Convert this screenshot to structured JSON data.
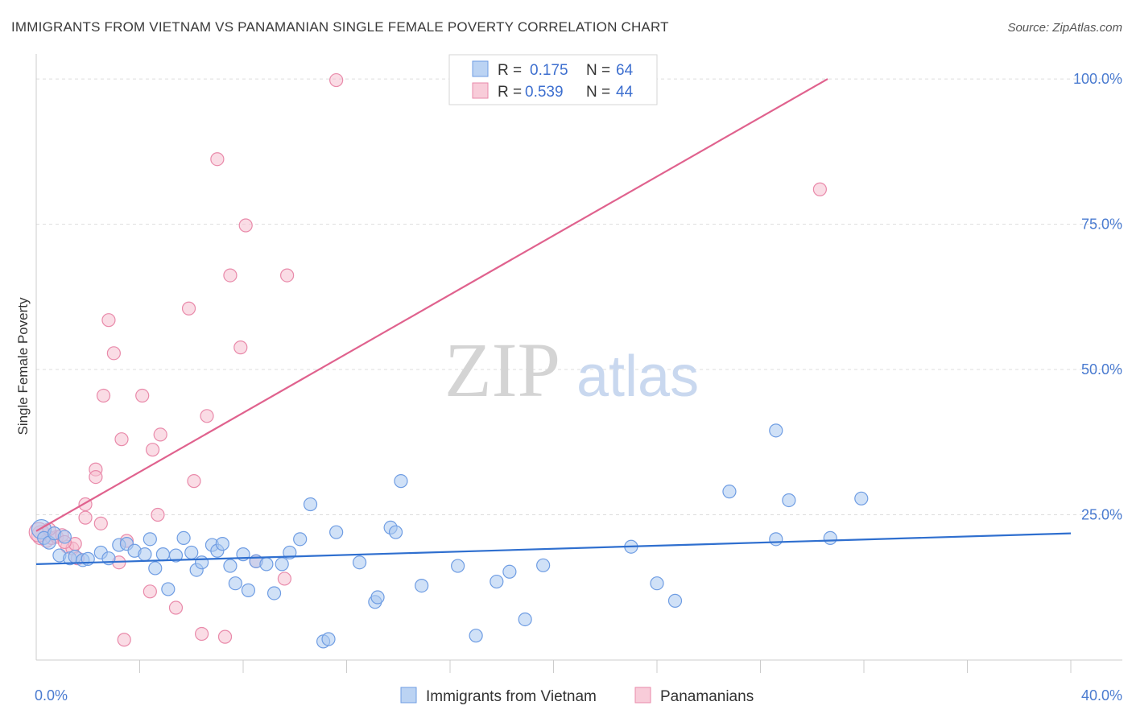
{
  "chart_data": {
    "type": "scatter",
    "title": "IMMIGRANTS FROM VIETNAM VS PANAMANIAN SINGLE FEMALE POVERTY CORRELATION CHART",
    "source": "Source: ZipAtlas.com",
    "ylabel": "Single Female Poverty",
    "xlim": [
      0,
      40
    ],
    "ylim": [
      0,
      105
    ],
    "x_tick_labels": [
      {
        "value": 0,
        "label": "0.0%"
      },
      {
        "value": 40,
        "label": "40.0%"
      }
    ],
    "y_tick_labels": [
      {
        "value": 25,
        "label": "25.0%"
      },
      {
        "value": 50,
        "label": "50.0%"
      },
      {
        "value": 75,
        "label": "75.0%"
      },
      {
        "value": 100,
        "label": "100.0%"
      }
    ],
    "watermark": {
      "zip": "ZIP",
      "atlas": "atlas"
    },
    "legend": {
      "r_label": "R =",
      "n_label": "N =",
      "entries": [
        {
          "r": "0.175",
          "n": "64"
        },
        {
          "r": "0.539",
          "n": "44"
        }
      ]
    },
    "series": [
      {
        "name": "Immigrants from Vietnam",
        "color": "#6f9de3",
        "fill": "#aac8f0",
        "trend": {
          "x0": 0,
          "y0": 16.5,
          "x1": 40,
          "y1": 21.8
        },
        "points": [
          [
            0.2,
            22.5
          ],
          [
            0.3,
            21.0
          ],
          [
            0.5,
            20.2
          ],
          [
            0.7,
            21.8
          ],
          [
            0.9,
            18.0
          ],
          [
            1.1,
            21.2
          ],
          [
            1.3,
            17.5
          ],
          [
            1.5,
            17.8
          ],
          [
            1.8,
            17.2
          ],
          [
            2.0,
            17.4
          ],
          [
            2.5,
            18.5
          ],
          [
            2.8,
            17.5
          ],
          [
            3.2,
            19.8
          ],
          [
            3.5,
            20.0
          ],
          [
            3.8,
            18.8
          ],
          [
            4.2,
            18.2
          ],
          [
            4.4,
            20.8
          ],
          [
            4.6,
            15.8
          ],
          [
            4.9,
            18.2
          ],
          [
            5.1,
            12.2
          ],
          [
            5.4,
            18.0
          ],
          [
            5.7,
            21.0
          ],
          [
            6.0,
            18.5
          ],
          [
            6.2,
            15.5
          ],
          [
            6.4,
            16.8
          ],
          [
            6.8,
            19.8
          ],
          [
            7.0,
            18.8
          ],
          [
            7.2,
            20.0
          ],
          [
            7.5,
            16.2
          ],
          [
            7.7,
            13.2
          ],
          [
            8.0,
            18.2
          ],
          [
            8.2,
            12.0
          ],
          [
            8.5,
            17.0
          ],
          [
            8.9,
            16.5
          ],
          [
            9.2,
            11.5
          ],
          [
            9.5,
            16.5
          ],
          [
            9.8,
            18.5
          ],
          [
            10.2,
            20.8
          ],
          [
            10.6,
            26.8
          ],
          [
            11.1,
            3.2
          ],
          [
            11.3,
            3.6
          ],
          [
            11.6,
            22.0
          ],
          [
            12.5,
            16.8
          ],
          [
            13.1,
            10.0
          ],
          [
            13.2,
            10.8
          ],
          [
            13.7,
            22.8
          ],
          [
            13.9,
            22.0
          ],
          [
            14.1,
            30.8
          ],
          [
            14.9,
            12.8
          ],
          [
            16.3,
            16.2
          ],
          [
            17.0,
            4.2
          ],
          [
            17.8,
            13.5
          ],
          [
            18.3,
            15.2
          ],
          [
            18.9,
            7.0
          ],
          [
            19.6,
            16.3
          ],
          [
            23.0,
            19.5
          ],
          [
            24.0,
            13.2
          ],
          [
            24.7,
            10.2
          ],
          [
            26.8,
            29.0
          ],
          [
            28.6,
            39.5
          ],
          [
            28.6,
            20.8
          ],
          [
            29.1,
            27.5
          ],
          [
            30.7,
            21.0
          ],
          [
            31.9,
            27.8
          ]
        ]
      },
      {
        "name": "Panamanians",
        "color": "#e98aaa",
        "fill": "#f6bfd0",
        "trend": {
          "x0": 0,
          "y0": 22.2,
          "x1": 30.6,
          "y1": 100
        },
        "points": [
          [
            0.2,
            21.5
          ],
          [
            0.4,
            20.5
          ],
          [
            0.6,
            21.0
          ],
          [
            0.8,
            21.2
          ],
          [
            1.0,
            21.5
          ],
          [
            1.2,
            19.5
          ],
          [
            1.4,
            19.2
          ],
          [
            1.5,
            20.0
          ],
          [
            1.6,
            17.5
          ],
          [
            1.9,
            26.8
          ],
          [
            1.9,
            24.5
          ],
          [
            2.3,
            32.8
          ],
          [
            2.3,
            31.5
          ],
          [
            2.5,
            23.5
          ],
          [
            2.6,
            45.5
          ],
          [
            2.8,
            58.5
          ],
          [
            3.0,
            52.8
          ],
          [
            3.2,
            16.8
          ],
          [
            3.3,
            38.0
          ],
          [
            3.4,
            3.5
          ],
          [
            3.5,
            20.5
          ],
          [
            4.1,
            45.5
          ],
          [
            4.4,
            11.8
          ],
          [
            4.5,
            36.2
          ],
          [
            4.7,
            25.0
          ],
          [
            4.8,
            38.8
          ],
          [
            5.4,
            9.0
          ],
          [
            5.9,
            60.5
          ],
          [
            6.1,
            30.8
          ],
          [
            6.4,
            4.5
          ],
          [
            6.6,
            42.0
          ],
          [
            7.0,
            86.2
          ],
          [
            7.3,
            4.0
          ],
          [
            7.5,
            66.2
          ],
          [
            7.9,
            53.8
          ],
          [
            8.1,
            74.8
          ],
          [
            8.5,
            17.0
          ],
          [
            9.6,
            14.0
          ],
          [
            9.7,
            66.2
          ],
          [
            11.6,
            99.8
          ],
          [
            30.3,
            81.0
          ],
          [
            0.1,
            22.0
          ],
          [
            0.5,
            22.5
          ],
          [
            1.1,
            20.3
          ]
        ]
      }
    ]
  }
}
